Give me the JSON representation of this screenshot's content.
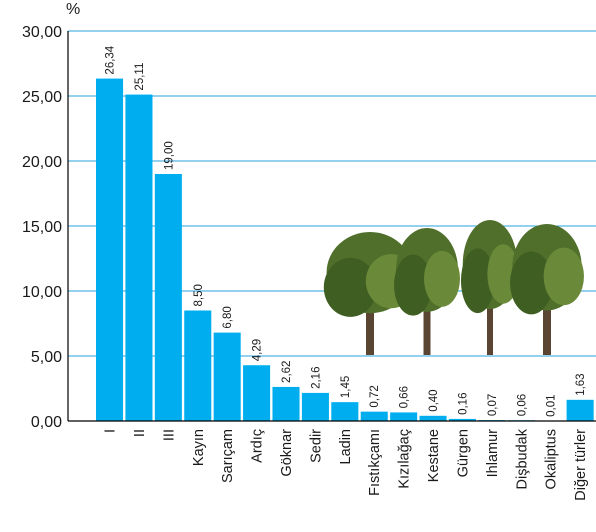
{
  "chart_data": {
    "type": "bar",
    "ylabel": "%",
    "ylim": [
      0,
      30
    ],
    "yticks": [
      "0,00",
      "5,00",
      "10,00",
      "15,00",
      "20,00",
      "25,00",
      "30,00"
    ],
    "grid": true,
    "categories": [
      "I",
      "II",
      "III",
      "Kayın",
      "Sarıçam",
      "Ardıç",
      "Göknar",
      "Sedir",
      "Ladin",
      "Fıstıkçamı",
      "Kızılağaç",
      "Kestane",
      "Gürgen",
      "Ihlamur",
      "Dişbudak",
      "Okaliptus",
      "Diğer türler"
    ],
    "values": [
      26.34,
      25.11,
      19.0,
      8.5,
      6.8,
      4.29,
      2.62,
      2.16,
      1.45,
      0.72,
      0.66,
      0.4,
      0.16,
      0.07,
      0.06,
      0.01,
      1.63
    ],
    "value_labels": [
      "26,34",
      "25,11",
      "19,00",
      "8,50",
      "6,80",
      "4,29",
      "2,62",
      "2,16",
      "1,45",
      "0,72",
      "0,66",
      "0,40",
      "0,16",
      "0,07",
      "0,06",
      "0,01",
      "1,63"
    ],
    "colors": {
      "bar": "#00aeef",
      "grid": "#29a3dc",
      "axis": "#000000",
      "canopy": "#4f6f2a",
      "trunk": "#5a4532"
    },
    "decoration": "tree-photos"
  }
}
